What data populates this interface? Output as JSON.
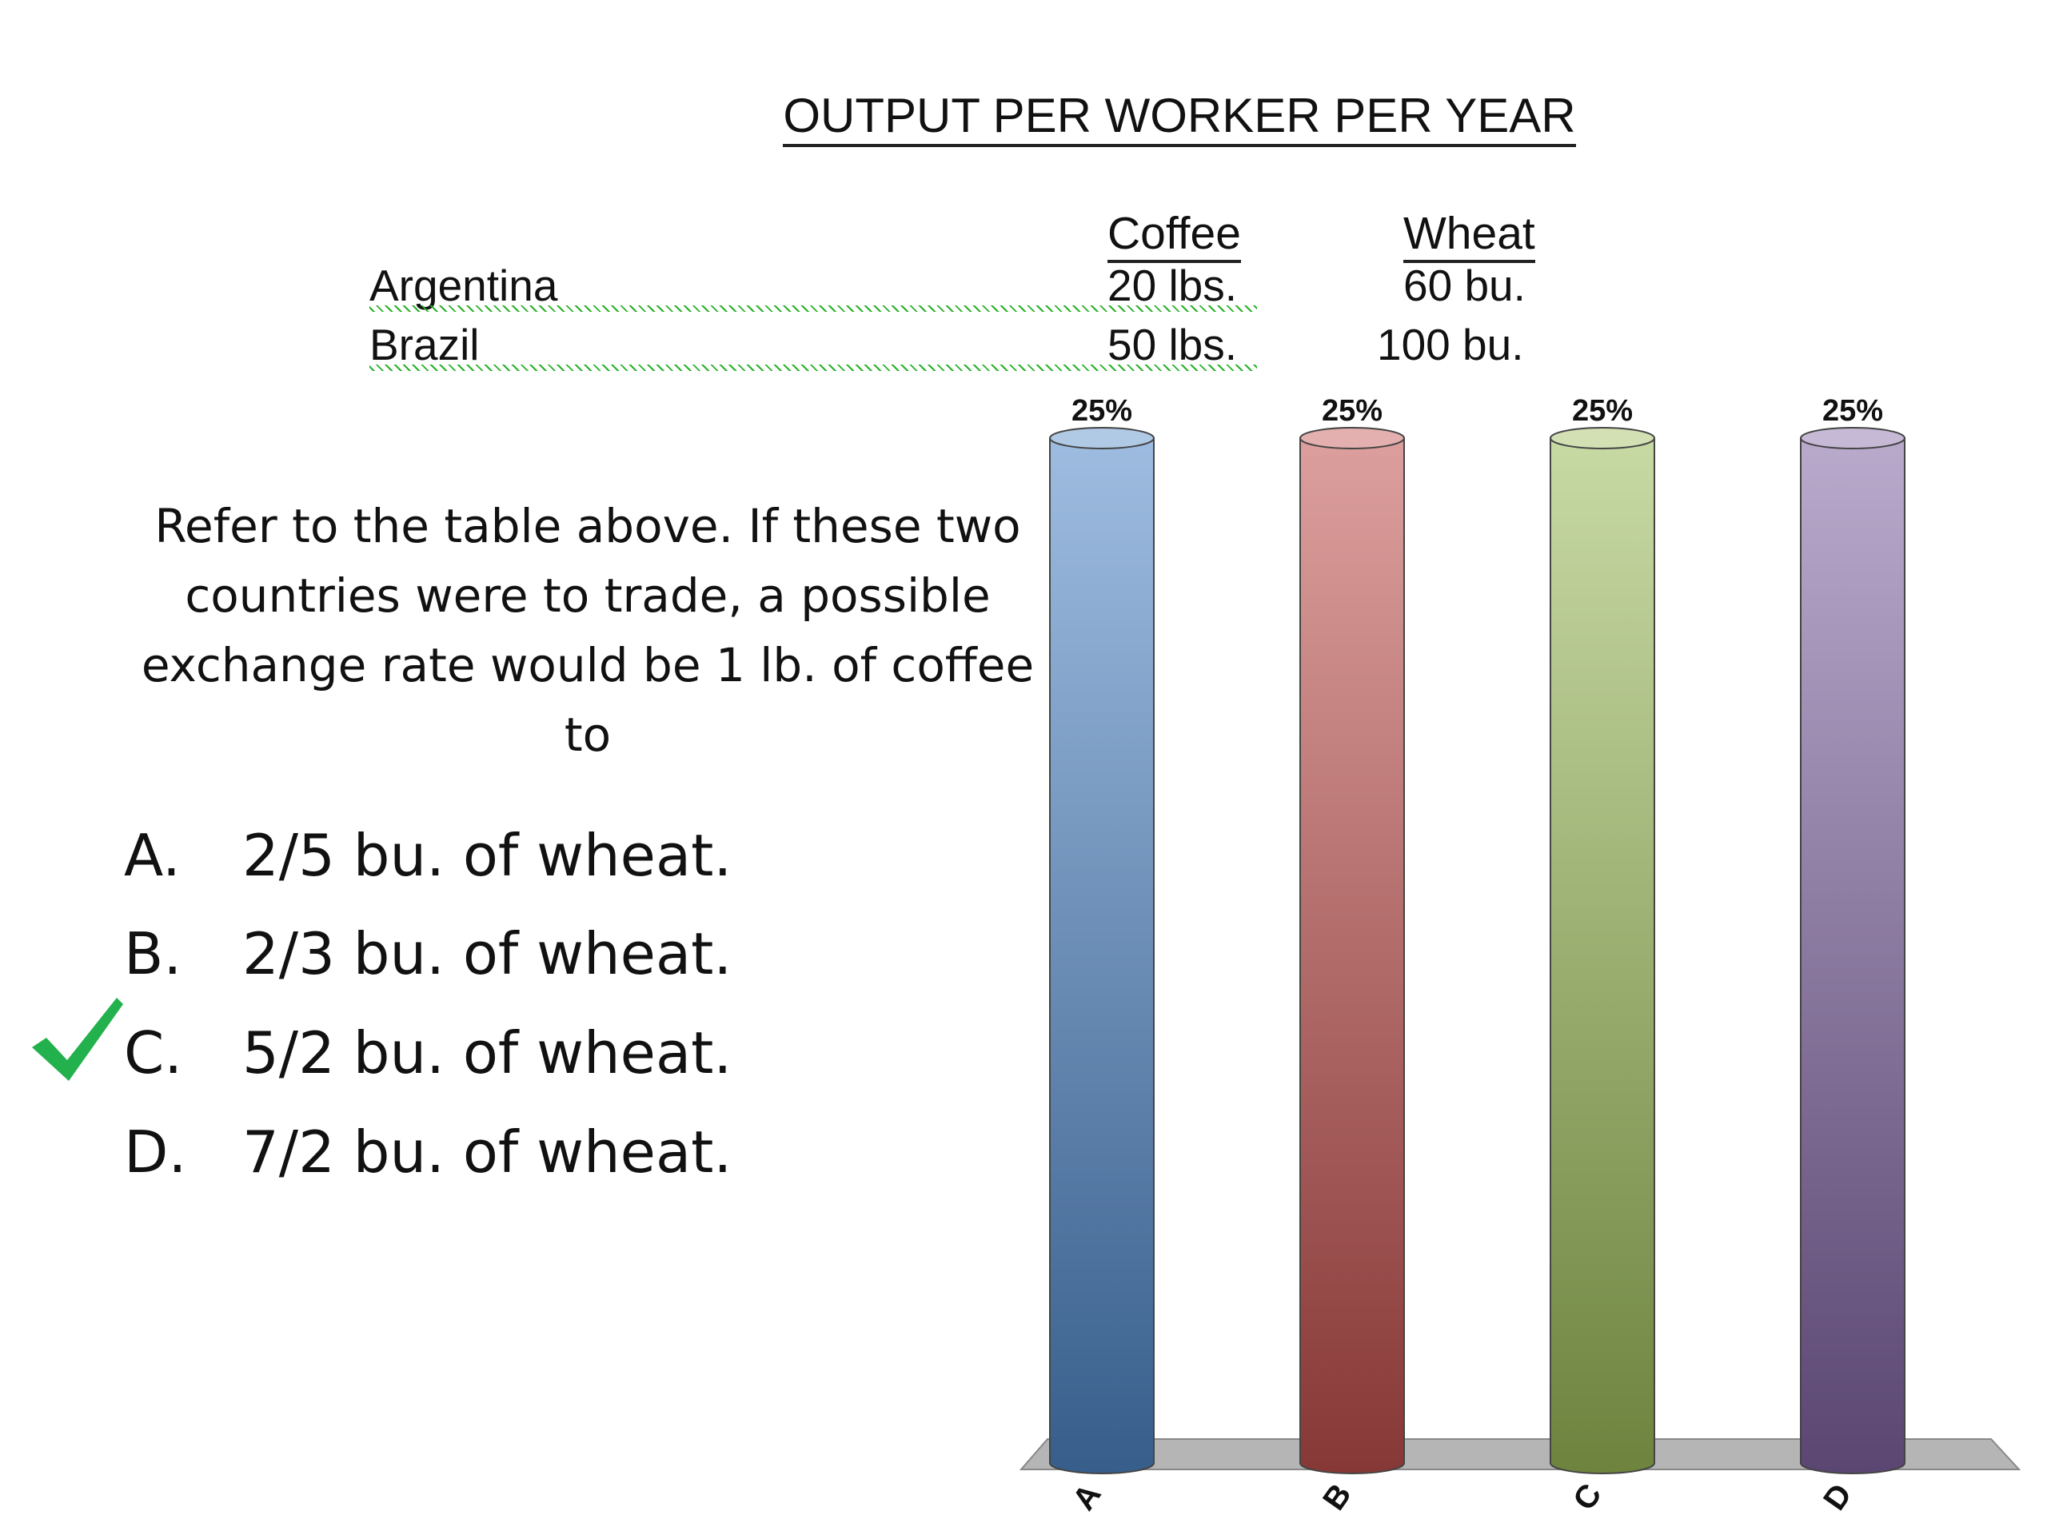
{
  "table": {
    "title": "OUTPUT PER WORKER PER YEAR",
    "headers": [
      "Coffee",
      "Wheat"
    ],
    "rows": [
      {
        "country": "Argentina",
        "coffee": "20 lbs.",
        "wheat": "60 bu."
      },
      {
        "country": "Brazil",
        "coffee": "50 lbs.",
        "wheat": "100 bu."
      }
    ]
  },
  "question": "Refer to the table above. If these two countries were to trade, a possible exchange rate would be 1 lb. of coffee to",
  "options": [
    {
      "letter": "A.",
      "text": "2/5 bu. of wheat."
    },
    {
      "letter": "B.",
      "text": "2/3 bu. of wheat."
    },
    {
      "letter": "C.",
      "text": "5/2 bu. of wheat.",
      "correct": true
    },
    {
      "letter": "D.",
      "text": "7/2 bu. of wheat."
    }
  ],
  "check_icon": "checkmark-icon",
  "check_color": "#22b14c",
  "chart_data": {
    "type": "bar",
    "categories": [
      "A",
      "B",
      "C",
      "D"
    ],
    "values": [
      25,
      25,
      25,
      25
    ],
    "data_labels": [
      "25%",
      "25%",
      "25%",
      "25%"
    ],
    "ylim": [
      0,
      25
    ],
    "grid": false,
    "legend": "none",
    "colors": [
      "#4f86c6",
      "#c0504d",
      "#9bbb59",
      "#8064a2"
    ]
  }
}
